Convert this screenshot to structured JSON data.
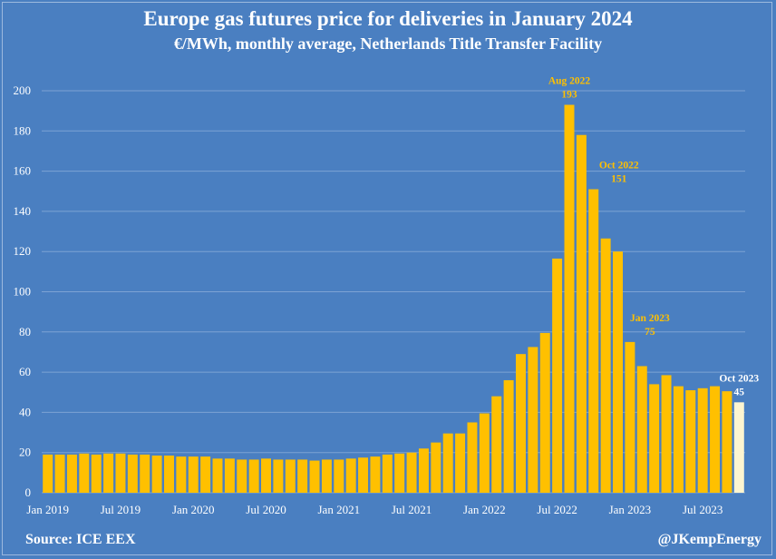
{
  "source_label": "Source: ICE EEX",
  "handle_label": "@JKempEnergy",
  "colors": {
    "background": "#4a7fc1",
    "bar": "#ffc000",
    "bar_latest": "#fdf5d0",
    "annotation_gold": "#ffc000",
    "annotation_white": "#ffffff",
    "grid": "#7da3d4"
  },
  "chart_data": {
    "type": "bar",
    "title": "Europe gas futures price for deliveries in January 2024",
    "subtitle": "€/MWh, monthly average, Netherlands Title Transfer Facility",
    "xlabel": "",
    "ylabel": "",
    "ylim": [
      0,
      200
    ],
    "yticks": [
      0,
      20,
      40,
      60,
      80,
      100,
      120,
      140,
      160,
      180,
      200
    ],
    "grid": true,
    "categories": [
      "Jan 2019",
      "Feb 2019",
      "Mar 2019",
      "Apr 2019",
      "May 2019",
      "Jun 2019",
      "Jul 2019",
      "Aug 2019",
      "Sep 2019",
      "Oct 2019",
      "Nov 2019",
      "Dec 2019",
      "Jan 2020",
      "Feb 2020",
      "Mar 2020",
      "Apr 2020",
      "May 2020",
      "Jun 2020",
      "Jul 2020",
      "Aug 2020",
      "Sep 2020",
      "Oct 2020",
      "Nov 2020",
      "Dec 2020",
      "Jan 2021",
      "Feb 2021",
      "Mar 2021",
      "Apr 2021",
      "May 2021",
      "Jun 2021",
      "Jul 2021",
      "Aug 2021",
      "Sep 2021",
      "Oct 2021",
      "Nov 2021",
      "Dec 2021",
      "Jan 2022",
      "Feb 2022",
      "Mar 2022",
      "Apr 2022",
      "May 2022",
      "Jun 2022",
      "Jul 2022",
      "Aug 2022",
      "Sep 2022",
      "Oct 2022",
      "Nov 2022",
      "Dec 2022",
      "Jan 2023",
      "Feb 2023",
      "Mar 2023",
      "Apr 2023",
      "May 2023",
      "Jun 2023",
      "Jul 2023",
      "Aug 2023",
      "Sep 2023",
      "Oct 2023"
    ],
    "values": [
      19,
      19,
      19,
      19.5,
      19,
      19.5,
      19.5,
      19,
      19,
      18.5,
      18.5,
      18,
      18,
      18,
      17,
      17,
      16.5,
      16.5,
      17,
      16.5,
      16.5,
      16.5,
      16,
      16.5,
      16.5,
      17,
      17.5,
      18,
      19,
      19.5,
      20,
      22,
      25,
      29.5,
      29.5,
      35,
      39.5,
      48,
      56,
      69,
      72.5,
      79.5,
      116.5,
      193,
      178,
      151,
      126.5,
      120,
      75,
      63,
      54,
      58.5,
      53,
      51,
      52,
      53,
      50.5,
      45
    ],
    "highlight_last": true,
    "xtick_labels": [
      "Jan 2019",
      "Jul 2019",
      "Jan 2020",
      "Jul 2020",
      "Jan 2021",
      "Jul 2021",
      "Jan 2022",
      "Jul 2022",
      "Jan 2023",
      "Jul 2023"
    ],
    "annotations": [
      {
        "category": "Aug 2022",
        "label": "Aug 2022",
        "value_text": "193",
        "style": "gold"
      },
      {
        "category": "Oct 2022",
        "label": "Oct 2022",
        "value_text": "151",
        "style": "gold"
      },
      {
        "category": "Jan 2023",
        "label": "Jan 2023",
        "value_text": "75",
        "style": "gold"
      },
      {
        "category": "Oct 2023",
        "label": "Oct 2023",
        "value_text": "45",
        "style": "white"
      }
    ]
  }
}
